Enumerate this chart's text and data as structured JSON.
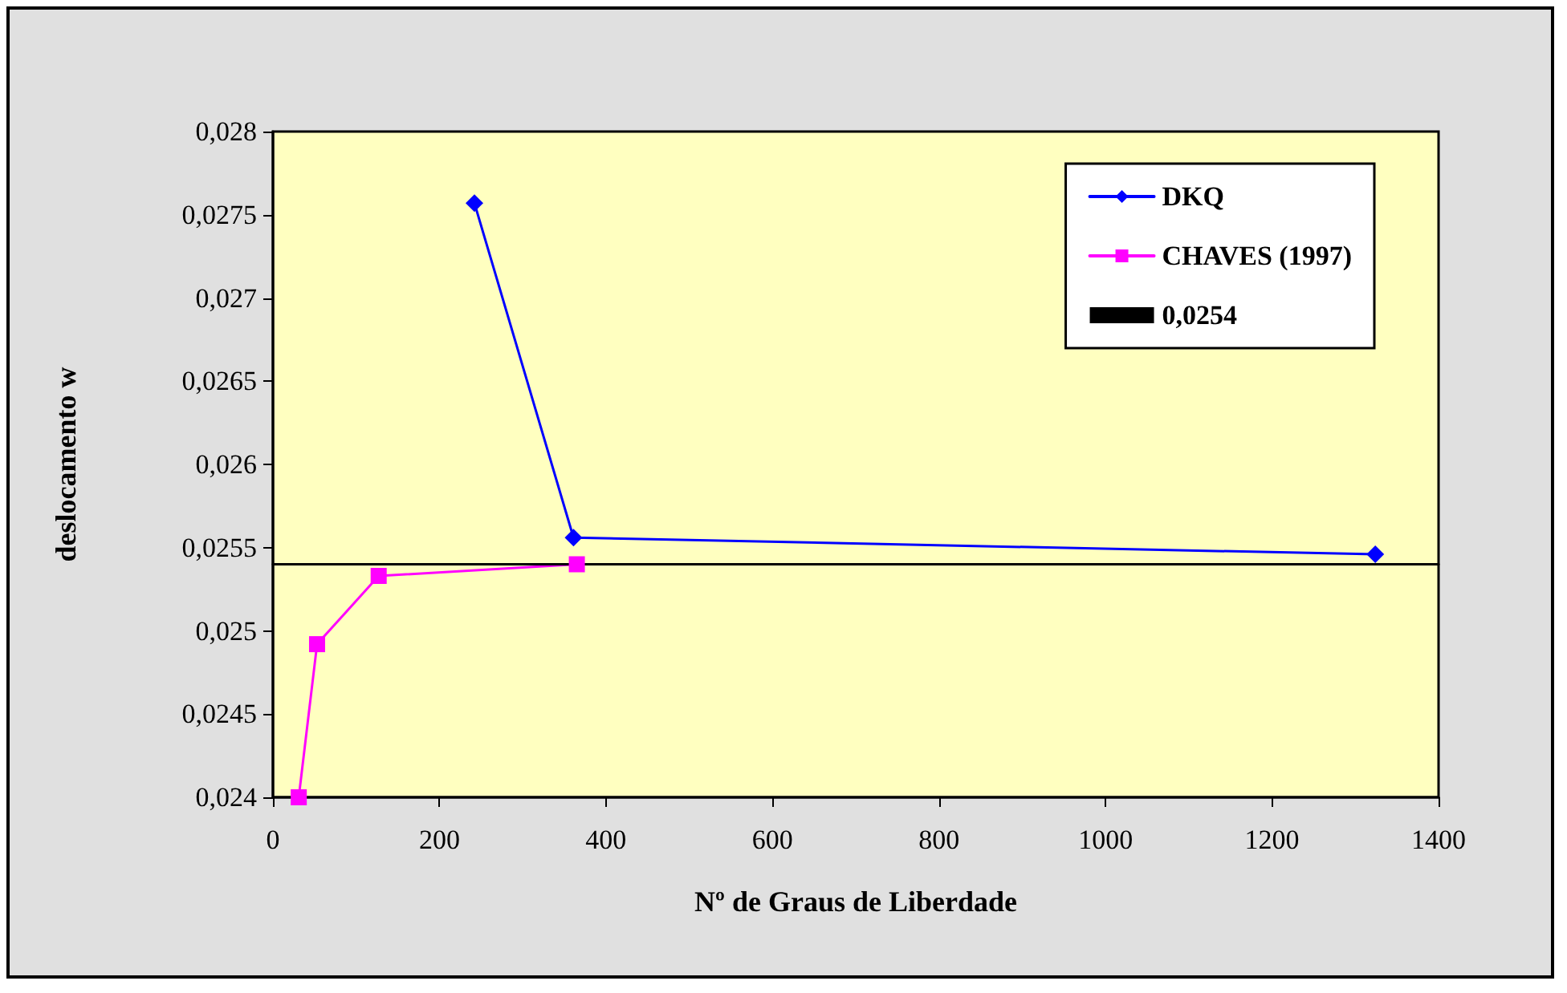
{
  "chart_data": {
    "type": "line",
    "xlabel": "Nº de Graus de Liberdade",
    "ylabel": "deslocamento w",
    "xlim": [
      0,
      1400
    ],
    "xticks": [
      0,
      200,
      400,
      600,
      800,
      1000,
      1200,
      1400
    ],
    "ylim": [
      0.024,
      0.028
    ],
    "yticks": [
      {
        "value": 0.024,
        "label": "0,024"
      },
      {
        "value": 0.0245,
        "label": "0,0245"
      },
      {
        "value": 0.025,
        "label": "0,025"
      },
      {
        "value": 0.0255,
        "label": "0,0255"
      },
      {
        "value": 0.026,
        "label": "0,026"
      },
      {
        "value": 0.0265,
        "label": "0,0265"
      },
      {
        "value": 0.027,
        "label": "0,027"
      },
      {
        "value": 0.0275,
        "label": "0,0275"
      },
      {
        "value": 0.028,
        "label": "0,028"
      }
    ],
    "grid": false,
    "legend": "top right",
    "line_style": "solid",
    "series": [
      {
        "name": "DKQ",
        "color": "#0000ff",
        "marker": "diamond",
        "x": [
          242,
          361,
          1324
        ],
        "values": [
          0.02757,
          0.02556,
          0.02546
        ]
      },
      {
        "name": "CHAVES (1997)",
        "color": "#ff00ff",
        "marker": "square",
        "x": [
          31,
          53,
          127,
          365
        ],
        "values": [
          0.024,
          0.02492,
          0.02533,
          0.0254
        ]
      },
      {
        "name": "0,0254",
        "color": "#000000",
        "marker": "none",
        "x": [
          0,
          1400
        ],
        "values": [
          0.0254,
          0.0254
        ]
      }
    ]
  }
}
